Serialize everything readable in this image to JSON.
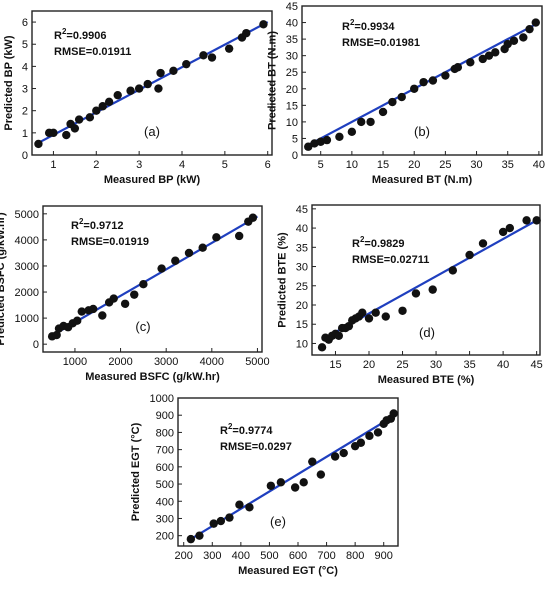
{
  "chart_data": [
    {
      "type": "scatter",
      "panel_label": "(a)",
      "xlabel": "Measured BP (kW)",
      "ylabel": "Predicted BP (kW)",
      "xlim": [
        0.5,
        6.1
      ],
      "ylim": [
        0,
        6.5
      ],
      "xticks": [
        1,
        2,
        3,
        4,
        5,
        6
      ],
      "yticks": [
        0,
        1,
        2,
        3,
        4,
        5,
        6
      ],
      "r2_text": "=0.9906",
      "rmse_text": "RMSE=0.01911",
      "fit_line": [
        [
          0.6,
          0.5
        ],
        [
          6.0,
          6.0
        ]
      ],
      "x": [
        0.65,
        0.9,
        1.0,
        1.3,
        1.4,
        1.5,
        1.6,
        1.85,
        2.0,
        2.15,
        2.3,
        2.5,
        2.8,
        3.0,
        3.2,
        3.45,
        3.5,
        3.8,
        4.1,
        4.5,
        4.7,
        5.1,
        5.4,
        5.5,
        5.9
      ],
      "y": [
        0.5,
        1.0,
        1.0,
        0.9,
        1.4,
        1.2,
        1.6,
        1.7,
        2.0,
        2.2,
        2.4,
        2.7,
        2.9,
        3.0,
        3.2,
        3.0,
        3.7,
        3.8,
        4.1,
        4.5,
        4.4,
        4.8,
        5.3,
        5.5,
        5.9
      ]
    },
    {
      "type": "scatter",
      "panel_label": "(b)",
      "xlabel": "Measured BT (N.m)",
      "ylabel": "Predicted BT (N.m)",
      "xlim": [
        2,
        40.5
      ],
      "ylim": [
        0,
        45
      ],
      "xticks": [
        5,
        10,
        15,
        20,
        25,
        30,
        35,
        40
      ],
      "yticks": [
        0,
        5,
        10,
        15,
        20,
        25,
        30,
        35,
        40,
        45
      ],
      "r2_text": "=0.9934",
      "rmse_text": "RMSE=0.01981",
      "fit_line": [
        [
          3,
          3
        ],
        [
          40,
          40
        ]
      ],
      "x": [
        3,
        4,
        5,
        6,
        8,
        10,
        11.5,
        13,
        15,
        16.5,
        18,
        20,
        21.5,
        23,
        25,
        26.5,
        27,
        29,
        31,
        32,
        33,
        34.5,
        35,
        36,
        37.5,
        38.5,
        39.5
      ],
      "y": [
        2.5,
        3.5,
        4,
        4.5,
        5.5,
        7,
        10,
        10,
        13,
        16,
        17.5,
        20,
        22,
        22.5,
        24,
        26,
        26.5,
        28,
        29,
        30,
        31,
        32,
        33.5,
        34.5,
        35.5,
        38,
        40
      ]
    },
    {
      "type": "scatter",
      "panel_label": "(c)",
      "xlabel": "Measured BSFC (g/kW.hr)",
      "ylabel": "Predicted BSFC (g/kW.hr)",
      "xlim": [
        300,
        5100
      ],
      "ylim": [
        -300,
        5300
      ],
      "xticks": [
        1000,
        2000,
        3000,
        4000,
        5000
      ],
      "yticks": [
        0,
        1000,
        2000,
        3000,
        4000,
        5000
      ],
      "r2_text": "=0.9712",
      "rmse_text": "RMSE=0.01919",
      "fit_line": [
        [
          450,
          280
        ],
        [
          5000,
          4900
        ]
      ],
      "x": [
        500,
        600,
        650,
        750,
        850,
        950,
        1050,
        1150,
        1300,
        1400,
        1600,
        1750,
        1850,
        2100,
        2300,
        2500,
        2900,
        3200,
        3500,
        3800,
        4100,
        4600,
        4800,
        4900
      ],
      "y": [
        300,
        350,
        600,
        700,
        650,
        800,
        900,
        1250,
        1300,
        1350,
        1100,
        1600,
        1750,
        1550,
        1900,
        2300,
        2900,
        3200,
        3500,
        3700,
        4100,
        4150,
        4700,
        4850
      ]
    },
    {
      "type": "scatter",
      "panel_label": "(d)",
      "xlabel": "Measured BTE (%)",
      "ylabel": "Predicted BTE (%)",
      "xlim": [
        11.5,
        45.5
      ],
      "ylim": [
        7,
        46
      ],
      "xticks": [
        15,
        20,
        25,
        30,
        35,
        40,
        45
      ],
      "yticks": [
        10,
        15,
        20,
        25,
        30,
        35,
        40,
        45
      ],
      "r2_text": "=0.9829",
      "rmse_text": "RMSE=0.02711",
      "fit_line": [
        [
          13,
          11
        ],
        [
          45,
          42
        ]
      ],
      "x": [
        13,
        13.5,
        14,
        14.5,
        15,
        15.5,
        16,
        16.5,
        17,
        17.5,
        18,
        18.5,
        19,
        20,
        21,
        22.5,
        25,
        27,
        29.5,
        32.5,
        35,
        37,
        40,
        41,
        43.5,
        45
      ],
      "y": [
        9,
        11.5,
        11,
        12,
        12.5,
        12,
        14,
        14,
        14.5,
        16,
        16.5,
        17,
        18,
        16.5,
        18,
        17,
        18.5,
        23,
        24,
        29,
        33,
        36,
        39,
        40,
        42,
        42
      ]
    },
    {
      "type": "scatter",
      "panel_label": "(e)",
      "xlabel": "Measured EGT (°C)",
      "ylabel": "Predicted EGT (°C)",
      "xlim": [
        180,
        950
      ],
      "ylim": [
        140,
        1000
      ],
      "xticks": [
        200,
        300,
        400,
        500,
        600,
        700,
        800,
        900
      ],
      "yticks": [
        200,
        300,
        400,
        500,
        600,
        700,
        800,
        900,
        1000
      ],
      "r2_text": "=0.9774",
      "rmse_text": "RMSE=0.0297",
      "fit_line": [
        [
          220,
          175
        ],
        [
          940,
          900
        ]
      ],
      "x": [
        225,
        255,
        305,
        330,
        360,
        395,
        430,
        505,
        540,
        590,
        620,
        650,
        680,
        730,
        760,
        800,
        820,
        850,
        880,
        900,
        910,
        925,
        935
      ],
      "y": [
        180,
        200,
        270,
        285,
        305,
        380,
        365,
        490,
        510,
        480,
        510,
        630,
        555,
        660,
        680,
        720,
        740,
        780,
        800,
        850,
        870,
        880,
        910
      ]
    }
  ]
}
